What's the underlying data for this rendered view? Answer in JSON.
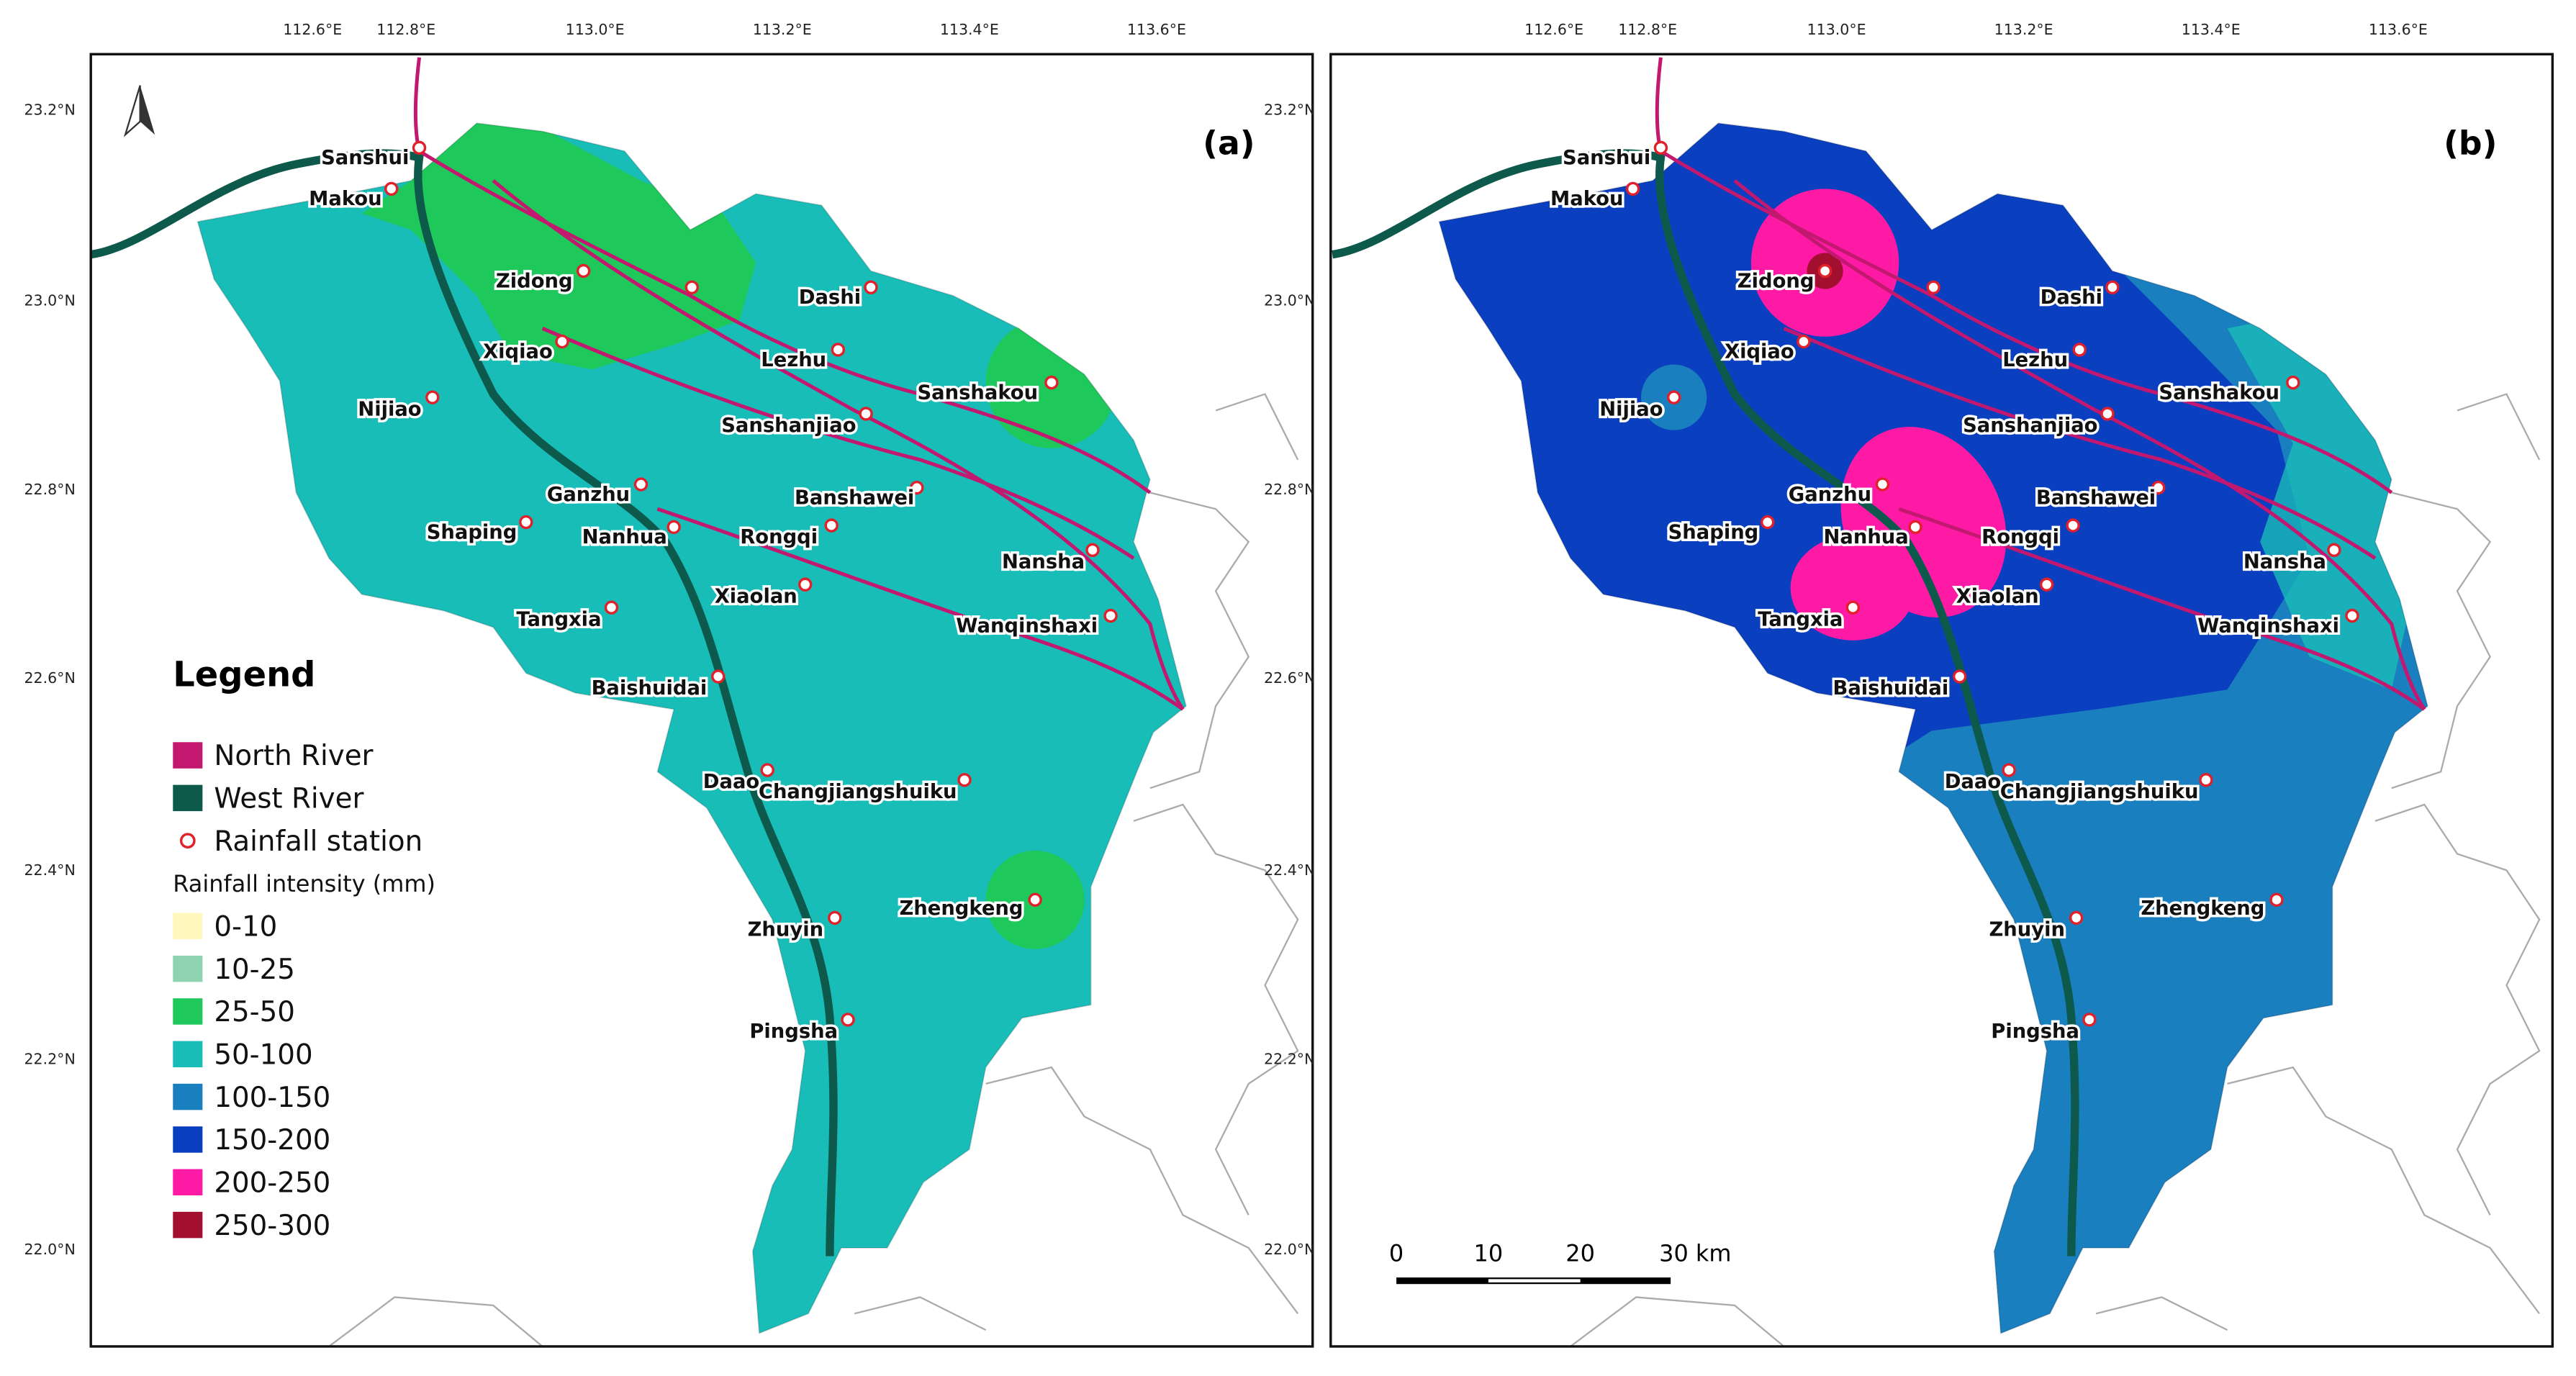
{
  "panels": [
    {
      "label": "(a)"
    },
    {
      "label": "(b)"
    }
  ],
  "lon_ticks": [
    "112.6°E",
    "112.8°E",
    "113.0°E",
    "113.2°E",
    "113.4°E",
    "113.6°E"
  ],
  "lat_ticks": [
    "23.2°N",
    "23.0°N",
    "22.8°N",
    "22.6°N",
    "22.4°N",
    "22.2°N",
    "22.0°N"
  ],
  "stations": [
    {
      "name": "Sanshui"
    },
    {
      "name": "Makou"
    },
    {
      "name": "Zidong"
    },
    {
      "name": "Dashi"
    },
    {
      "name": "Xiqiao"
    },
    {
      "name": "Lezhu"
    },
    {
      "name": "Sanshakou"
    },
    {
      "name": "Nijiao"
    },
    {
      "name": "Sanshanjiao"
    },
    {
      "name": "Ganzhu"
    },
    {
      "name": "Banshawei"
    },
    {
      "name": "Shaping"
    },
    {
      "name": "Nanhua"
    },
    {
      "name": "Rongqi"
    },
    {
      "name": "Nansha"
    },
    {
      "name": "Xiaolan"
    },
    {
      "name": "Tangxia"
    },
    {
      "name": "Wanqinshaxi"
    },
    {
      "name": "Baishuidai"
    },
    {
      "name": "Daao"
    },
    {
      "name": "Changjiangshuiku"
    },
    {
      "name": "Zhengkeng"
    },
    {
      "name": "Zhuyin"
    },
    {
      "name": "Pingsha"
    }
  ],
  "legend": {
    "title": "Legend",
    "items": [
      {
        "label": "North River",
        "color": "#c2186f"
      },
      {
        "label": "West River",
        "color": "#0d5a4d"
      },
      {
        "label": "Rainfall station",
        "color": "#e0202a"
      }
    ],
    "subtitle": "Rainfall intensity (mm)",
    "classes": [
      {
        "label": "0-10",
        "color": "#fff7bc"
      },
      {
        "label": "10-25",
        "color": "#8dd3b0"
      },
      {
        "label": "25-50",
        "color": "#1ec85a"
      },
      {
        "label": "50-100",
        "color": "#19bdb8"
      },
      {
        "label": "100-150",
        "color": "#1a7fbf"
      },
      {
        "label": "150-200",
        "color": "#0a3fbf"
      },
      {
        "label": "200-250",
        "color": "#ff1aa6"
      },
      {
        "label": "250-300",
        "color": "#a3102f"
      }
    ]
  },
  "scale_bar": {
    "labels": [
      "0",
      "10",
      "20",
      "30 km"
    ]
  }
}
